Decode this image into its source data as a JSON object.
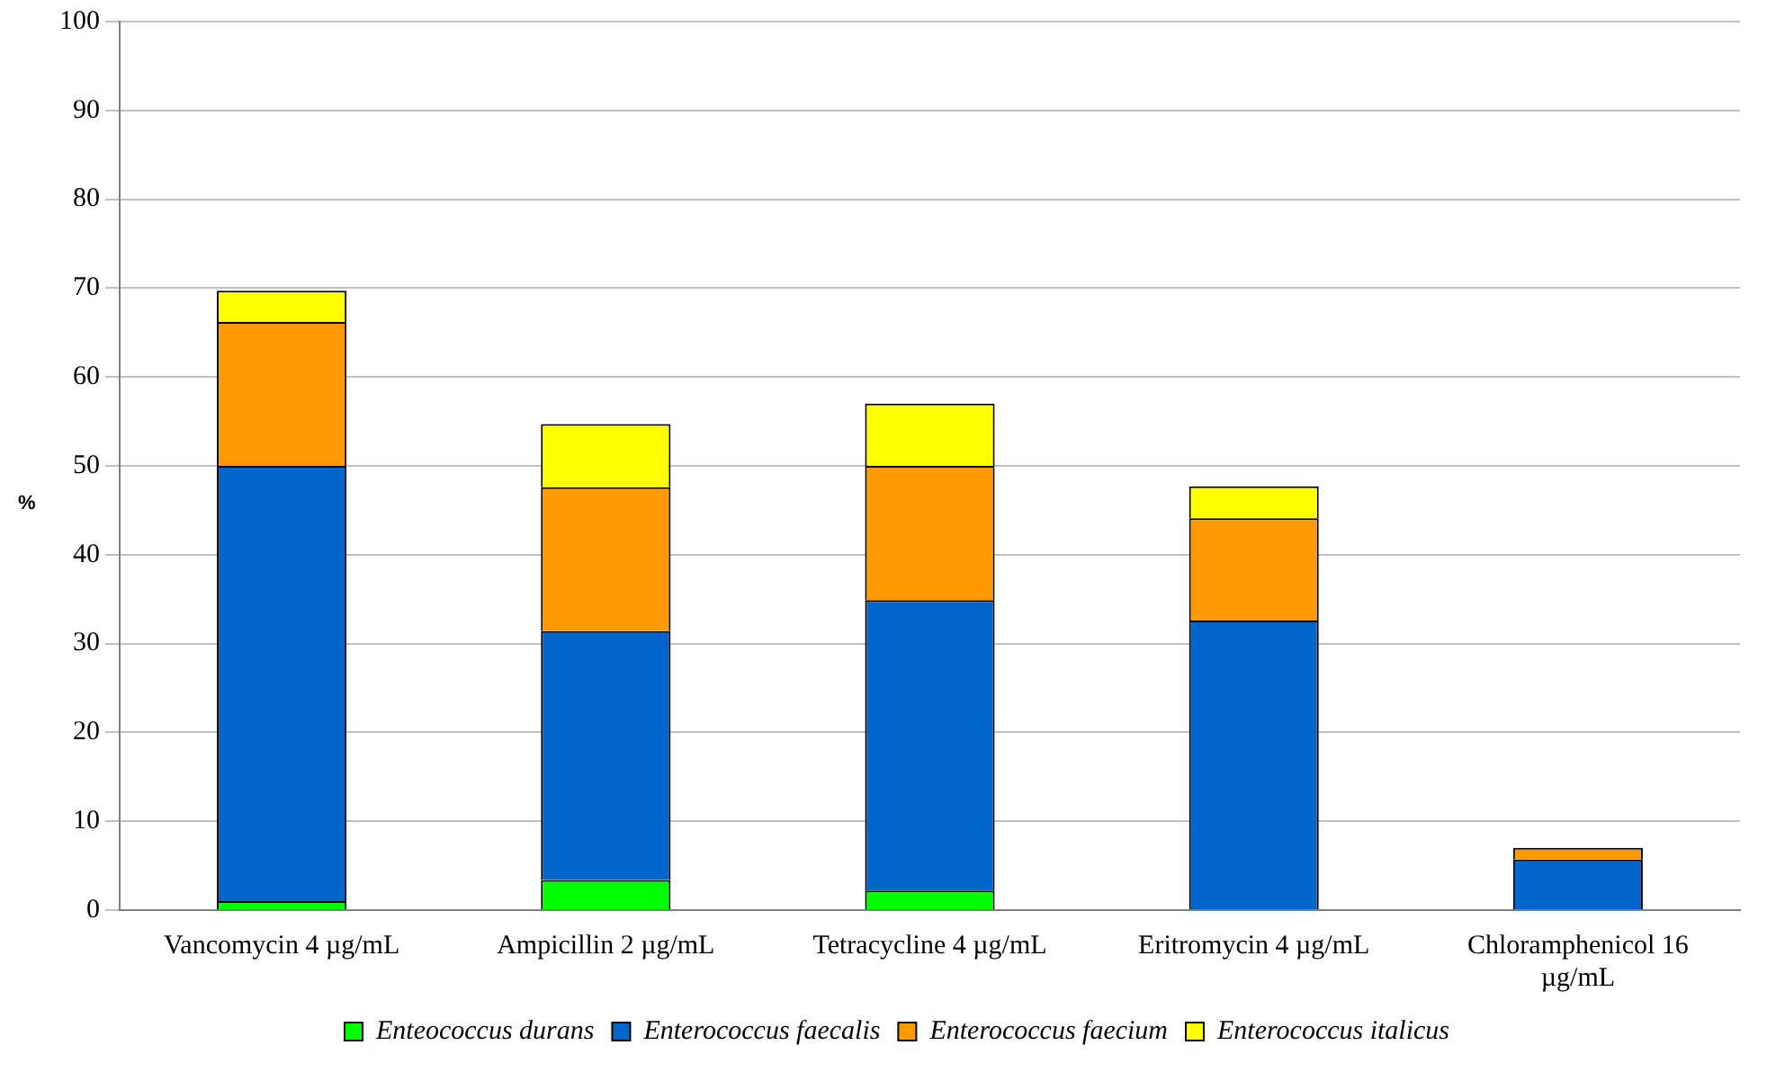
{
  "chart_data": {
    "type": "bar",
    "stacked": true,
    "ylabel": "%",
    "categories": [
      "Vancomycin 4 µg/mL",
      "Ampicillin 2 µg/mL",
      "Tetracycline 4 µg/mL",
      "Eritromycin 4 µg/mL",
      "Chloramphenicol 16 µg/mL"
    ],
    "series": [
      {
        "name": "Enteococcus durans",
        "color": "#00ff00",
        "values": [
          1.0,
          3.4,
          2.2,
          0,
          0
        ]
      },
      {
        "name": "Enterococcus faecalis",
        "color": "#0066cc",
        "values": [
          49.0,
          28.0,
          32.7,
          32.6,
          5.7
        ]
      },
      {
        "name": "Enterococcus faecium",
        "color": "#ff9900",
        "values": [
          16.2,
          16.2,
          15.1,
          11.5,
          1.3
        ]
      },
      {
        "name": "Enterococcus italicus",
        "color": "#ffff00",
        "values": [
          3.5,
          7.1,
          7.0,
          3.6,
          0
        ]
      }
    ],
    "ylim": [
      0,
      100
    ],
    "yticks": [
      0,
      10,
      20,
      30,
      40,
      50,
      60,
      70,
      80,
      90,
      100
    ],
    "grid": "y",
    "legend": "bottom"
  }
}
